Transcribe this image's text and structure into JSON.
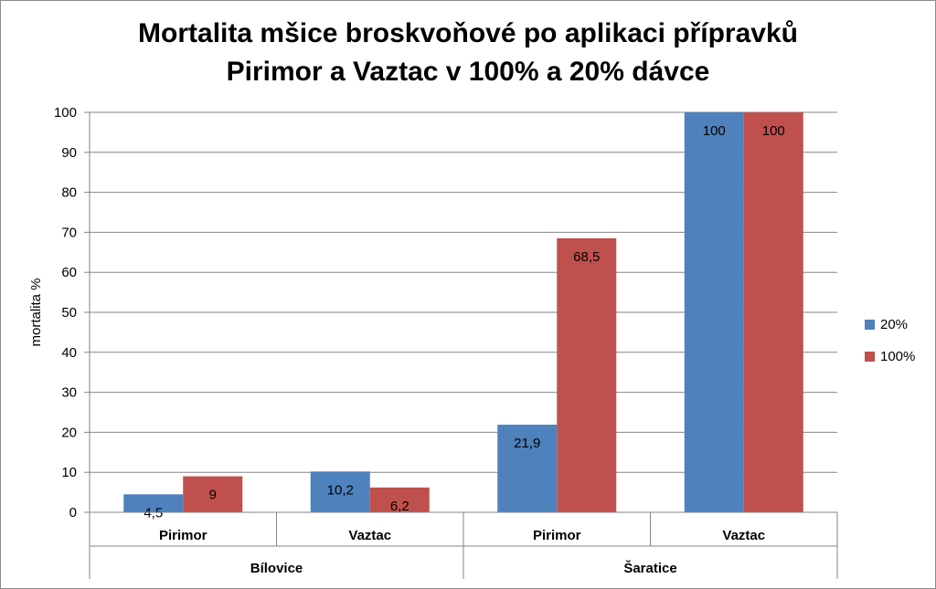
{
  "chart_data": {
    "type": "bar",
    "title_lines": [
      "Mortalita mšice broskvoňové po aplikaci přípravků",
      "Pirimor a Vaztac v 100% a 20% dávce"
    ],
    "ylabel": "mortalita %",
    "ylim": [
      0,
      100
    ],
    "yticks": [
      0,
      10,
      20,
      30,
      40,
      50,
      60,
      70,
      80,
      90,
      100
    ],
    "categories": [
      "Pirimor",
      "Vaztac",
      "Pirimor",
      "Vaztac"
    ],
    "groups": [
      {
        "label": "Bílovice",
        "span": 2
      },
      {
        "label": "Šaratice",
        "span": 2
      }
    ],
    "series": [
      {
        "name": "20%",
        "color": "#4f81bd",
        "values": [
          4.5,
          10.2,
          21.9,
          100
        ],
        "labels": [
          "4,5",
          "10,2",
          "21,9",
          "100"
        ]
      },
      {
        "name": "100%",
        "color": "#c0504d",
        "values": [
          9,
          6.2,
          68.5,
          100
        ],
        "labels": [
          "9",
          "6,2",
          "68,5",
          "100"
        ]
      }
    ],
    "grid": true,
    "legend": "right"
  }
}
